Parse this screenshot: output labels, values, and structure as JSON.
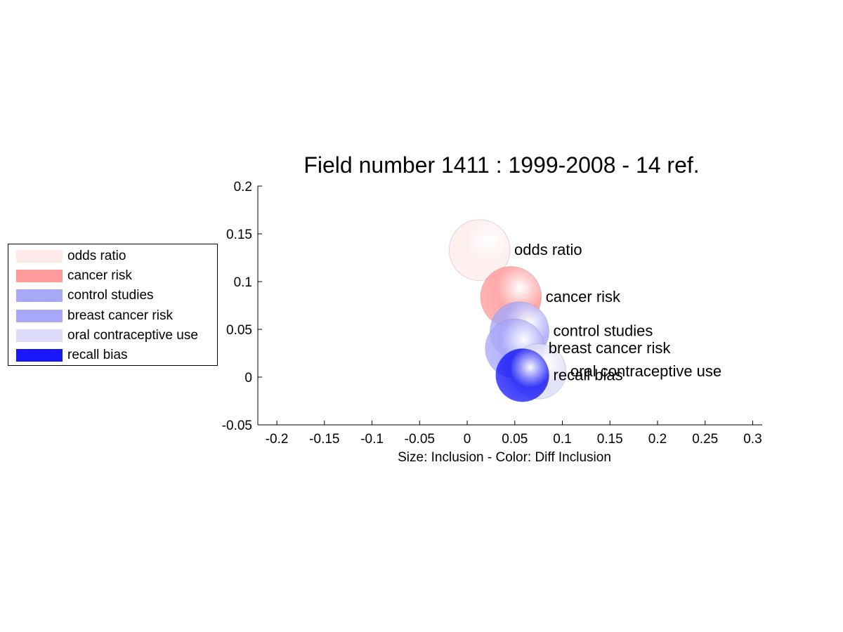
{
  "chart_data": {
    "type": "scatter",
    "title": "Field number 1411 : 1999-2008  - 14 ref.",
    "xlabel": "Size: Inclusion - Color: Diff Inclusion",
    "ylabel": "",
    "xlim": [
      -0.22,
      0.31
    ],
    "ylim": [
      -0.05,
      0.2
    ],
    "xticks": [
      "-0.2",
      "-0.15",
      "-0.1",
      "-0.05",
      "0",
      "0.05",
      "0.1",
      "0.15",
      "0.2",
      "0.25",
      "0.3"
    ],
    "yticks": [
      "-0.05",
      "0",
      "0.05",
      "0.1",
      "0.15",
      "0.2"
    ],
    "grid": false,
    "legend_position": "outside-left",
    "series": [
      {
        "name": "odds ratio",
        "x": 0.013,
        "y": 0.133,
        "size": 0.032,
        "color": "#ffeaea"
      },
      {
        "name": "cancer risk",
        "x": 0.046,
        "y": 0.084,
        "size": 0.032,
        "color": "#ff9a9a"
      },
      {
        "name": "control studies",
        "x": 0.055,
        "y": 0.048,
        "size": 0.031,
        "color": "#a8a8f8"
      },
      {
        "name": "breast cancer risk",
        "x": 0.05,
        "y": 0.03,
        "size": 0.031,
        "color": "#a8a8f8"
      },
      {
        "name": "oral contraceptive use",
        "x": 0.075,
        "y": 0.006,
        "size": 0.029,
        "color": "#dcdcf8"
      },
      {
        "name": "recall bias",
        "x": 0.058,
        "y": 0.002,
        "size": 0.028,
        "color": "#1818f8"
      }
    ]
  }
}
